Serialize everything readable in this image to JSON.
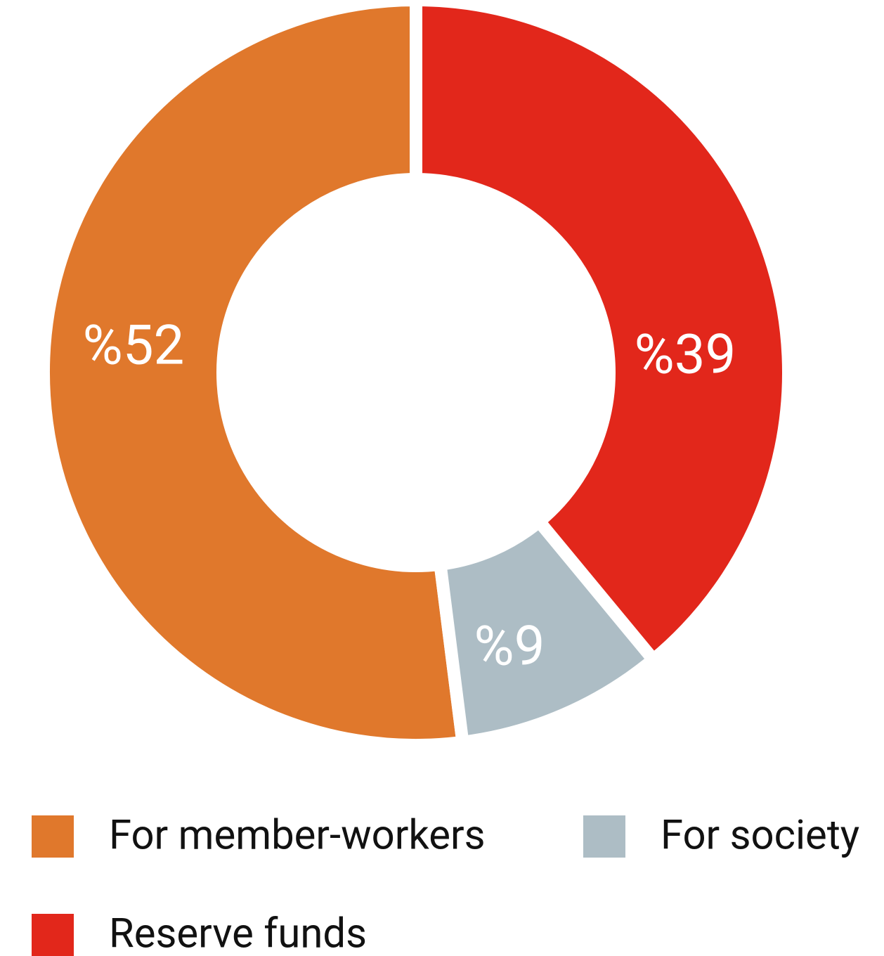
{
  "chart_data": {
    "type": "donut",
    "categories": [
      "For member-workers",
      "For society",
      "Reserve funds"
    ],
    "values": [
      52,
      9,
      39
    ],
    "value_labels": [
      "%52",
      "%9",
      "%39"
    ],
    "colors": [
      "#e0782c",
      "#adbdc5",
      "#e2271b"
    ]
  }
}
